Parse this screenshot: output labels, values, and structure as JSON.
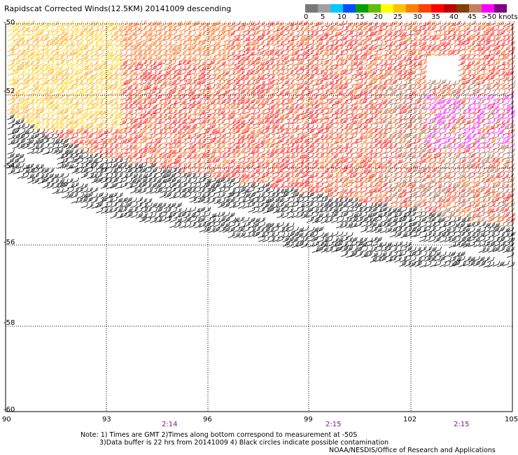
{
  "title": "Rapidscat Corrected Winds(12.5KM) 20141009 descending",
  "colorbar": {
    "colors": [
      "#787878",
      "#a0a0a0",
      "#00c8ff",
      "#0050ff",
      "#00a000",
      "#60c000",
      "#ffff00",
      "#ffc000",
      "#ff8000",
      "#ff4000",
      "#ff0000",
      "#c00000",
      "#804000",
      "#c08060",
      "#ff00ff",
      "#800080"
    ],
    "labels": [
      "0",
      "5",
      "10",
      "15",
      "20",
      "25",
      "30",
      "35",
      "40",
      "45",
      ">50 knots"
    ]
  },
  "map": {
    "lon_ticks": [
      "90",
      "93",
      "96",
      "99",
      "102",
      "105"
    ],
    "lat_ticks": [
      "-50",
      "-52",
      "-54",
      "-56",
      "-58",
      "-60"
    ],
    "time_labels": [
      "2:14",
      "2:15",
      "2:15"
    ],
    "wind_colors": [
      "#000000",
      "#ff0000",
      "#ff6000",
      "#e04000",
      "#ffa000",
      "#ffd000",
      "#ffff00",
      "#a06040",
      "#804020",
      "#ff00ff"
    ]
  },
  "footer": {
    "note_line1": "Note: 1) Times are GMT 2)Times along bottom correspond to measurement at -50S",
    "note_line2": "3)Data buffer is 22 hrs from 20141009 4) Black circles indicate possible contamination",
    "credit": "NOAA/NESDIS/Office of Research and Applications"
  }
}
